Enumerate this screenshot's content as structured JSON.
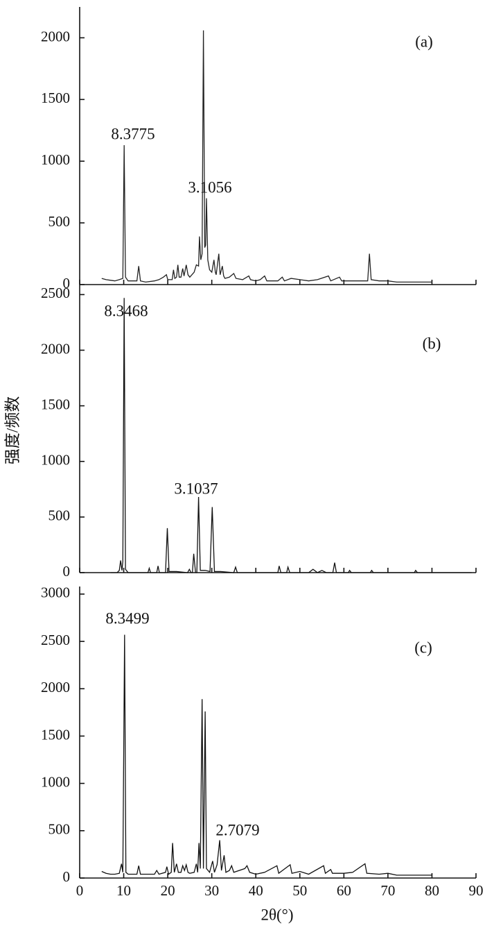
{
  "chart_data": [
    {
      "type": "line",
      "annotations": [
        "8.3775",
        "3.1056",
        "(a)"
      ],
      "xlim": [
        0,
        90
      ],
      "ylim": [
        0,
        2250
      ],
      "yticks": [
        0,
        500,
        1000,
        1500,
        2000
      ],
      "x": [
        5,
        6,
        7,
        8,
        9,
        9.8,
        10.1,
        10.4,
        11,
        13,
        13.4,
        13.8,
        15,
        17,
        18,
        19,
        19.7,
        20,
        21,
        21.3,
        21.6,
        22,
        22.3,
        22.6,
        23,
        23.4,
        23.7,
        24.2,
        24.6,
        25,
        26,
        26.5,
        27,
        27.2,
        27.5,
        27.8,
        28.1,
        28.4,
        28.6,
        28.8,
        29.1,
        29.5,
        30,
        30.5,
        30.8,
        31,
        31.6,
        31.9,
        32.4,
        32.7,
        33,
        34,
        35,
        35.5,
        37,
        38.4,
        38.8,
        40,
        41,
        42,
        42.5,
        45,
        46,
        46.5,
        48,
        50,
        52,
        54,
        56.5,
        57,
        59,
        59.5,
        62,
        64,
        65.4,
        65.8,
        66.2,
        68,
        70,
        72,
        75,
        78,
        80
      ],
      "series": [
        {
          "color": "#222222",
          "values": [
            50,
            40,
            35,
            30,
            40,
            50,
            1130,
            60,
            30,
            30,
            150,
            30,
            20,
            30,
            40,
            60,
            80,
            40,
            40,
            120,
            50,
            60,
            160,
            60,
            60,
            130,
            70,
            160,
            80,
            60,
            100,
            160,
            150,
            390,
            200,
            250,
            2060,
            300,
            320,
            700,
            200,
            120,
            100,
            200,
            100,
            80,
            250,
            80,
            150,
            70,
            50,
            60,
            90,
            50,
            40,
            70,
            40,
            30,
            40,
            70,
            30,
            30,
            60,
            30,
            50,
            40,
            30,
            40,
            70,
            30,
            60,
            30,
            30,
            30,
            30,
            250,
            40,
            30,
            30,
            20,
            20,
            20,
            20
          ]
        }
      ]
    },
    {
      "type": "line",
      "annotations": [
        "8.3468",
        "3.1037",
        "(b)"
      ],
      "ylabel": "强度/频数",
      "xlim": [
        0,
        90
      ],
      "ylim": [
        0,
        2590
      ],
      "yticks": [
        0,
        500,
        1000,
        1500,
        2000,
        2500
      ],
      "x": [
        7,
        8.5,
        9,
        9.3,
        9.6,
        9.8,
        10.1,
        10.4,
        11,
        15.5,
        15.8,
        16.1,
        17.5,
        17.8,
        18.1,
        19.5,
        19.9,
        20.3,
        22,
        24.5,
        24.9,
        25.3,
        25.6,
        25.9,
        26.3,
        26.6,
        27,
        27.4,
        28.5,
        29.6,
        30.1,
        30.6,
        32,
        35,
        35.4,
        35.8,
        40,
        45,
        45.3,
        45.7,
        47,
        47.3,
        47.7,
        52,
        53,
        54,
        55,
        56,
        57.5,
        57.9,
        58.3,
        61,
        61.3,
        61.7,
        66,
        66.3,
        66.7,
        76,
        76.3,
        76.7,
        89
      ],
      "series": [
        {
          "color": "#111111",
          "values": [
            0,
            0,
            20,
            110,
            20,
            100,
            2470,
            30,
            0,
            0,
            40,
            0,
            0,
            60,
            0,
            0,
            400,
            10,
            10,
            0,
            30,
            0,
            0,
            170,
            0,
            0,
            680,
            20,
            20,
            10,
            590,
            10,
            10,
            0,
            50,
            0,
            0,
            0,
            60,
            0,
            0,
            50,
            0,
            0,
            30,
            0,
            20,
            0,
            0,
            90,
            0,
            0,
            20,
            0,
            0,
            20,
            0,
            0,
            20,
            0,
            0
          ]
        }
      ]
    },
    {
      "type": "line",
      "annotations": [
        "8.3499",
        "2.7079",
        "(c)"
      ],
      "xlabel": "2θ(°)",
      "xlim": [
        0,
        90
      ],
      "xticks": [
        0,
        10,
        20,
        30,
        40,
        50,
        60,
        70,
        80,
        90
      ],
      "ylim": [
        0,
        3080
      ],
      "yticks": [
        0,
        500,
        1000,
        1500,
        2000,
        2500,
        3000
      ],
      "x": [
        5,
        6,
        7,
        8,
        9,
        9.5,
        9.8,
        10.2,
        10.5,
        11,
        13,
        13.4,
        13.8,
        17,
        17.5,
        18,
        19.5,
        19.8,
        20.2,
        20.8,
        21.1,
        21.5,
        22,
        22.4,
        23,
        23.4,
        23.8,
        24.2,
        24.6,
        25,
        26,
        26.5,
        26.8,
        27.1,
        27.4,
        27.8,
        28.1,
        28.5,
        28.8,
        29.5,
        30.2,
        30.6,
        31.2,
        31.8,
        32.2,
        32.8,
        33.2,
        34,
        34.5,
        35,
        37.5,
        38,
        38.6,
        40,
        42,
        44.8,
        45.2,
        47.8,
        48.2,
        50,
        52,
        55.4,
        55.8,
        57,
        57.4,
        60,
        62,
        64.8,
        65.2,
        68,
        70,
        72,
        75,
        78,
        80
      ],
      "series": [
        {
          "color": "#111111",
          "values": [
            70,
            50,
            40,
            40,
            50,
            150,
            60,
            2570,
            60,
            40,
            40,
            130,
            40,
            40,
            80,
            40,
            60,
            120,
            40,
            60,
            370,
            60,
            150,
            60,
            60,
            130,
            80,
            140,
            60,
            50,
            60,
            150,
            60,
            370,
            100,
            1890,
            100,
            1760,
            100,
            60,
            180,
            60,
            140,
            400,
            80,
            240,
            60,
            80,
            130,
            60,
            100,
            130,
            60,
            40,
            60,
            130,
            50,
            140,
            50,
            70,
            40,
            130,
            50,
            90,
            50,
            50,
            60,
            150,
            50,
            40,
            50,
            30,
            30,
            30,
            30
          ]
        }
      ]
    }
  ]
}
